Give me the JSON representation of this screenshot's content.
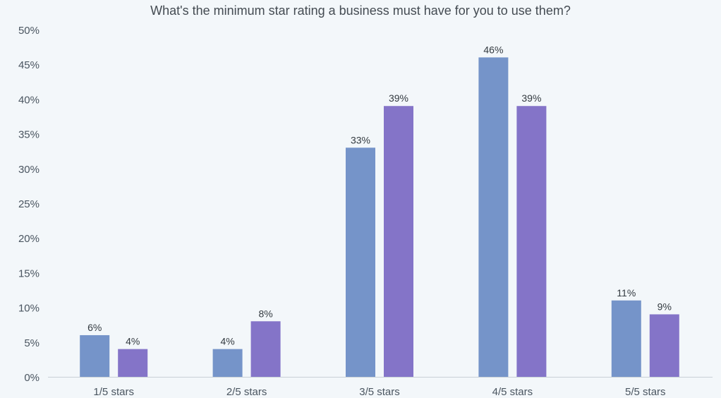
{
  "chart_data": {
    "type": "bar",
    "title": "What's the minimum star rating a business must have for you to use them?",
    "xlabel": "",
    "ylabel": "",
    "categories": [
      "1/5 stars",
      "2/5 stars",
      "3/5 stars",
      "4/5 stars",
      "5/5 stars"
    ],
    "series": [
      {
        "values": [
          6,
          4,
          33,
          46,
          11
        ],
        "labels": [
          "6%",
          "4%",
          "33%",
          "46%",
          "11%"
        ],
        "color": "#7594c9"
      },
      {
        "values": [
          4,
          8,
          39,
          39,
          9
        ],
        "labels": [
          "4%",
          "8%",
          "39%",
          "39%",
          "9%"
        ],
        "color": "#8474c8"
      }
    ],
    "ylim": [
      0,
      50
    ],
    "yticks": [
      0,
      5,
      10,
      15,
      20,
      25,
      30,
      35,
      40,
      45,
      50
    ],
    "ytick_labels": [
      "0%",
      "5%",
      "10%",
      "15%",
      "20%",
      "25%",
      "30%",
      "35%",
      "40%",
      "45%",
      "50%"
    ],
    "grid": false,
    "legend": "none"
  }
}
